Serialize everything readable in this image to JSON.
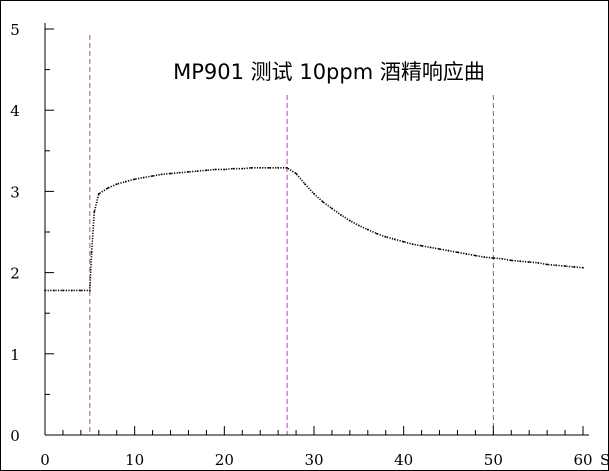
{
  "chart_data": {
    "type": "line",
    "title": "MP901 测试 10ppm 酒精响应曲",
    "xlabel": "",
    "ylabel": "",
    "x_unit_label": "S",
    "xlim": [
      0,
      60
    ],
    "ylim": [
      0,
      5
    ],
    "x_ticks": [
      0,
      10,
      20,
      30,
      40,
      50,
      60
    ],
    "y_ticks": [
      0,
      1,
      2,
      3,
      4,
      5
    ],
    "grid": false,
    "legend": "none",
    "colors": {
      "series": "#000000",
      "markers": "#cc33cc",
      "axis": "#000000"
    },
    "vertical_markers": [
      5,
      27,
      50
    ],
    "series": [
      {
        "style": "dotted",
        "x": [
          0,
          1,
          2,
          3,
          4,
          5,
          5.2,
          5.5,
          6,
          7,
          8,
          9,
          10,
          11,
          12,
          13,
          14,
          15,
          16,
          17,
          18,
          19,
          20,
          21,
          22,
          23,
          24,
          25,
          26,
          27,
          28,
          29,
          30,
          31,
          32,
          33,
          34,
          35,
          36,
          37,
          38,
          39,
          40,
          41,
          42,
          43,
          44,
          45,
          46,
          47,
          48,
          49,
          50,
          51,
          52,
          53,
          54,
          55,
          56,
          57,
          58,
          59,
          60
        ],
        "y": [
          1.78,
          1.78,
          1.78,
          1.78,
          1.78,
          1.78,
          2.25,
          2.75,
          2.97,
          3.04,
          3.09,
          3.12,
          3.15,
          3.17,
          3.19,
          3.21,
          3.22,
          3.23,
          3.24,
          3.25,
          3.26,
          3.27,
          3.27,
          3.28,
          3.28,
          3.29,
          3.29,
          3.29,
          3.29,
          3.29,
          3.22,
          3.09,
          2.97,
          2.87,
          2.79,
          2.71,
          2.64,
          2.58,
          2.53,
          2.48,
          2.44,
          2.41,
          2.38,
          2.35,
          2.33,
          2.31,
          2.29,
          2.27,
          2.25,
          2.23,
          2.21,
          2.19,
          2.18,
          2.17,
          2.15,
          2.14,
          2.13,
          2.12,
          2.1,
          2.09,
          2.08,
          2.07,
          2.06
        ]
      }
    ]
  }
}
